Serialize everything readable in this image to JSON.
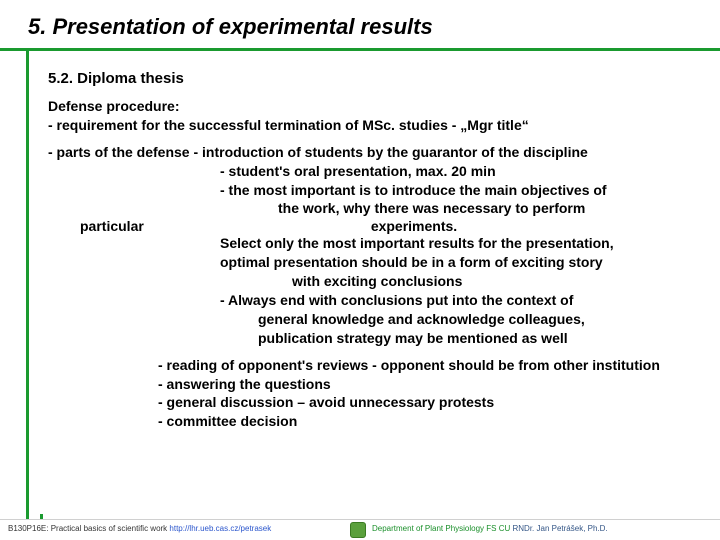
{
  "title": "5. Presentation of experimental results",
  "subhead": "5.2. Diploma thesis",
  "dp_label": "Defense procedure:",
  "req": " - requirement for the successful termination of MSc. studies - „Mgr title“",
  "parts_intro": " - parts of the defense - introduction of students by the guarantor of the discipline",
  "oral": "- student's oral presentation, max. 20 min",
  "impA": "- the most important is to introduce the main objectives of",
  "impB": "the work, why there was necessary to perform",
  "particular_label": "particular",
  "particular_rest": "experiments.",
  "selA": "Select only the most important results for the presentation,",
  "selB": "optimal presentation should be in a form of exciting story",
  "selC": "with exciting conclusions",
  "endA": "- Always end with conclusions put into the context of",
  "endB": "general knowledge and acknowledge colleagues,",
  "endC": "publication strategy may be mentioned as well",
  "read": "- reading of opponent's reviews - opponent should be from other institution",
  "ans": "- answering the questions",
  "disc": "- general discussion – avoid unnecessary protests",
  "comm": "- committee decision",
  "footer": {
    "course": "B130P16E: Practical basics of scientific work ",
    "url": "http://lhr.ueb.cas.cz/petrasek",
    "dept": "Department of Plant Physiology FS CU",
    "author": "  RNDr. Jan Petrášek, Ph.D."
  }
}
